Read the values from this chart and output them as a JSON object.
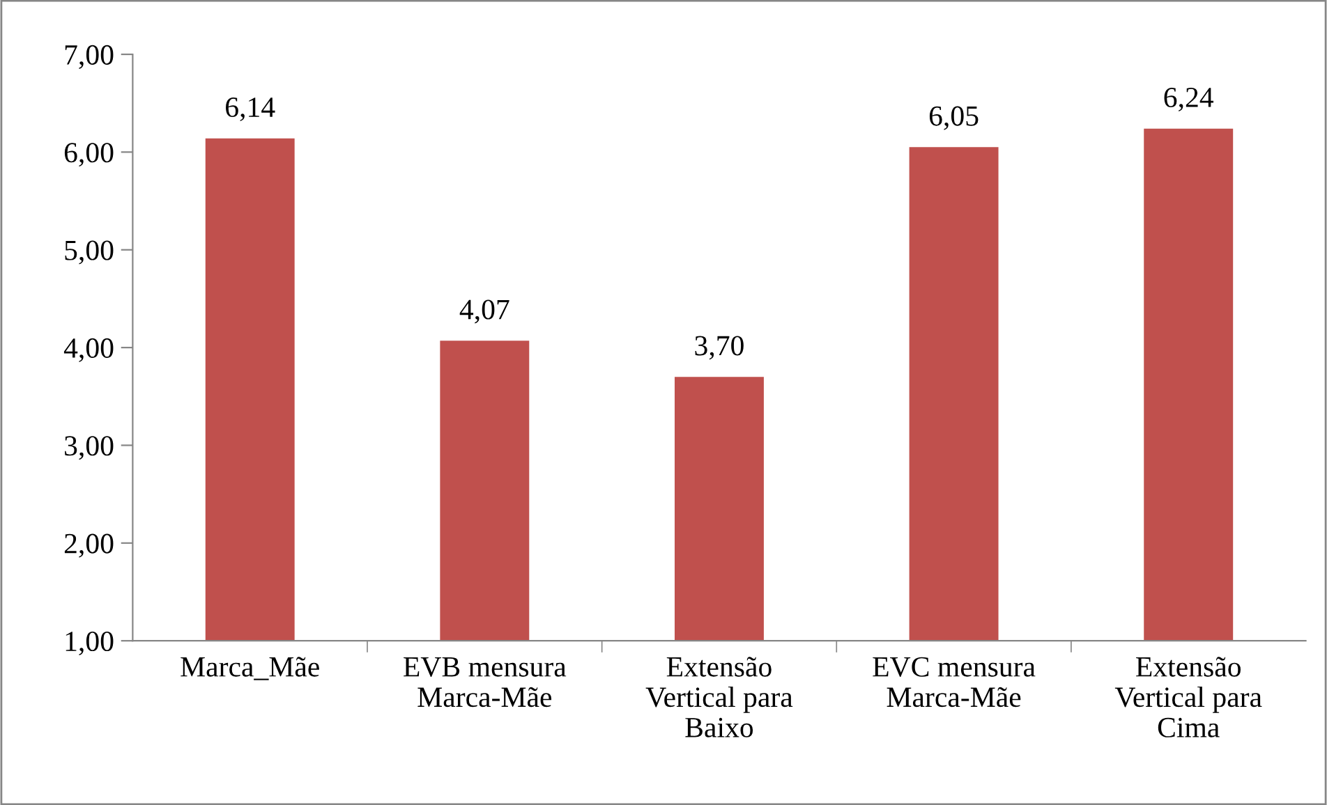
{
  "chart_data": {
    "type": "bar",
    "categories": [
      "Marca_Mãe",
      "EVB mensura\nMarca-Mãe",
      "Extensão\nVertical para\nBaixo",
      "EVC mensura\nMarca-Mãe",
      "Extensão\nVertical para\nCima"
    ],
    "values": [
      6.14,
      4.07,
      3.7,
      6.05,
      6.24
    ],
    "value_labels": [
      "6,14",
      "4,07",
      "3,70",
      "6,05",
      "6,24"
    ],
    "color": "#c0504d",
    "ylim": [
      1,
      7
    ],
    "yticks": [
      {
        "value": 1,
        "label": "1,00"
      },
      {
        "value": 2,
        "label": "2,00"
      },
      {
        "value": 3,
        "label": "3,00"
      },
      {
        "value": 4,
        "label": "4,00"
      },
      {
        "value": 5,
        "label": "5,00"
      },
      {
        "value": 6,
        "label": "6,00"
      },
      {
        "value": 7,
        "label": "7,00"
      }
    ],
    "grid": false,
    "legend": false
  }
}
